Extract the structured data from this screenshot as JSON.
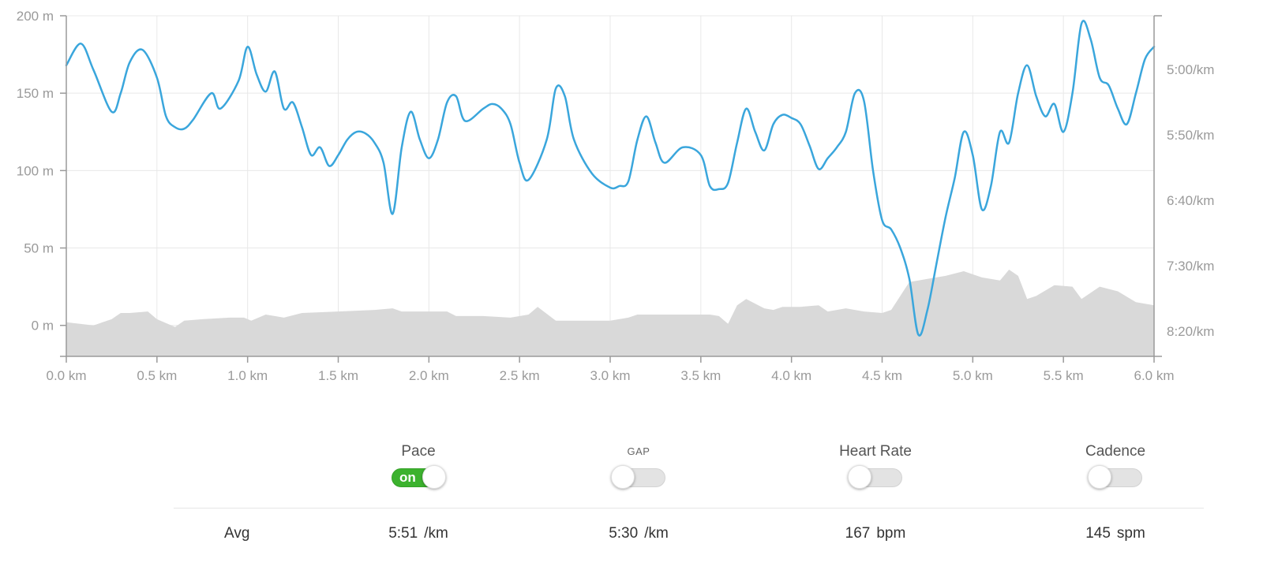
{
  "chart_data": {
    "type": "line",
    "title": "",
    "x_unit": "km",
    "xlim": [
      0,
      6
    ],
    "x_ticks": [
      "0.0 km",
      "0.5 km",
      "1.0 km",
      "1.5 km",
      "2.0 km",
      "2.5 km",
      "3.0 km",
      "3.5 km",
      "4.0 km",
      "4.5 km",
      "5.0 km",
      "5.5 km",
      "6.0 km"
    ],
    "y_left_ticks": [
      "200 m",
      "150 m",
      "100 m",
      "50 m",
      "0 m"
    ],
    "y_left_lim": [
      -20,
      200
    ],
    "y_right_ticks": [
      "5:00/km",
      "5:50/km",
      "6:40/km",
      "7:30/km",
      "8:20/km"
    ],
    "grid": true,
    "series": [
      {
        "type": "area",
        "color": "#d9d9d9",
        "x": [
          0,
          0.15,
          0.25,
          0.3,
          0.35,
          0.45,
          0.5,
          0.6,
          0.65,
          0.75,
          0.9,
          0.98,
          1.02,
          1.1,
          1.15,
          1.2,
          1.3,
          1.5,
          1.7,
          1.8,
          1.85,
          1.95,
          2.1,
          2.15,
          2.3,
          2.45,
          2.55,
          2.6,
          2.7,
          2.8,
          3.0,
          3.1,
          3.15,
          3.3,
          3.45,
          3.55,
          3.6,
          3.65,
          3.7,
          3.75,
          3.85,
          3.9,
          3.95,
          4.05,
          4.15,
          4.2,
          4.3,
          4.4,
          4.5,
          4.55,
          4.65,
          4.75,
          4.85,
          4.95,
          5.05,
          5.15,
          5.2,
          5.25,
          5.3,
          5.35,
          5.45,
          5.55,
          5.6,
          5.7,
          5.8,
          5.9,
          6.0
        ],
        "y": [
          2,
          0,
          4,
          8,
          8,
          9,
          4,
          -1,
          3,
          4,
          5,
          5,
          3,
          7,
          6,
          5,
          8,
          9,
          10,
          11,
          9,
          9,
          9,
          6,
          6,
          5,
          7,
          12,
          3,
          3,
          3,
          5,
          7,
          7,
          7,
          7,
          6,
          1,
          13,
          17,
          11,
          10,
          12,
          12,
          13,
          9,
          11,
          9,
          8,
          10,
          28,
          30,
          32,
          35,
          31,
          29,
          36,
          32,
          17,
          19,
          26,
          25,
          17,
          25,
          22,
          15,
          13
        ],
        "note": "elevation profile"
      },
      {
        "type": "line",
        "color": "#3aa6dc",
        "x": [
          0,
          0.08,
          0.15,
          0.25,
          0.3,
          0.35,
          0.42,
          0.5,
          0.55,
          0.6,
          0.65,
          0.7,
          0.8,
          0.85,
          0.95,
          1.0,
          1.05,
          1.1,
          1.15,
          1.2,
          1.25,
          1.3,
          1.35,
          1.4,
          1.45,
          1.5,
          1.55,
          1.6,
          1.65,
          1.7,
          1.75,
          1.8,
          1.85,
          1.9,
          1.95,
          2.0,
          2.05,
          2.1,
          2.15,
          2.2,
          2.3,
          2.35,
          2.4,
          2.45,
          2.5,
          2.55,
          2.65,
          2.7,
          2.75,
          2.8,
          2.9,
          3.0,
          3.05,
          3.1,
          3.15,
          3.2,
          3.25,
          3.3,
          3.4,
          3.5,
          3.55,
          3.6,
          3.65,
          3.7,
          3.75,
          3.8,
          3.85,
          3.9,
          3.95,
          4.0,
          4.05,
          4.1,
          4.15,
          4.2,
          4.25,
          4.3,
          4.35,
          4.4,
          4.45,
          4.5,
          4.55,
          4.6,
          4.65,
          4.7,
          4.75,
          4.8,
          4.85,
          4.9,
          4.95,
          5.0,
          5.05,
          5.1,
          5.15,
          5.2,
          5.25,
          5.3,
          5.35,
          5.4,
          5.45,
          5.5,
          5.55,
          5.6,
          5.65,
          5.7,
          5.75,
          5.8,
          5.85,
          5.9,
          5.95,
          6.0
        ],
        "y": [
          168,
          182,
          165,
          138,
          150,
          170,
          178,
          160,
          135,
          128,
          127,
          133,
          150,
          140,
          158,
          180,
          162,
          151,
          164,
          140,
          144,
          128,
          110,
          115,
          103,
          110,
          120,
          125,
          124,
          118,
          105,
          72,
          115,
          138,
          120,
          108,
          120,
          144,
          148,
          132,
          140,
          143,
          140,
          130,
          105,
          94,
          120,
          153,
          148,
          120,
          98,
          89,
          90,
          93,
          120,
          135,
          118,
          105,
          115,
          110,
          90,
          88,
          92,
          118,
          140,
          125,
          113,
          130,
          136,
          134,
          130,
          116,
          101,
          108,
          115,
          125,
          150,
          145,
          100,
          68,
          62,
          50,
          30,
          -6,
          10,
          40,
          70,
          95,
          125,
          110,
          75,
          90,
          125,
          118,
          150,
          168,
          148,
          135,
          143,
          125,
          150,
          195,
          185,
          160,
          155,
          140,
          130,
          150,
          172,
          180
        ]
      }
    ]
  },
  "controls": [
    {
      "label": "Pace",
      "state": "on",
      "on_text": "on",
      "small": false
    },
    {
      "label": "GAP",
      "state": "off",
      "on_text": "",
      "small": true
    },
    {
      "label": "Heart Rate",
      "state": "off",
      "on_text": "",
      "small": false
    },
    {
      "label": "Cadence",
      "state": "off",
      "on_text": "",
      "small": false
    }
  ],
  "averages": {
    "label": "Avg",
    "values": [
      {
        "num": "5:51",
        "unit": "/km"
      },
      {
        "num": "5:30",
        "unit": "/km"
      },
      {
        "num": "167",
        "unit": "bpm"
      },
      {
        "num": "145",
        "unit": "spm"
      }
    ]
  },
  "colors": {
    "pace_line": "#3aa6dc",
    "elevation_fill": "#d9d9d9",
    "toggle_on": "#3cb22e",
    "grid": "#e8e8e8",
    "axis": "#9a9a9a"
  }
}
